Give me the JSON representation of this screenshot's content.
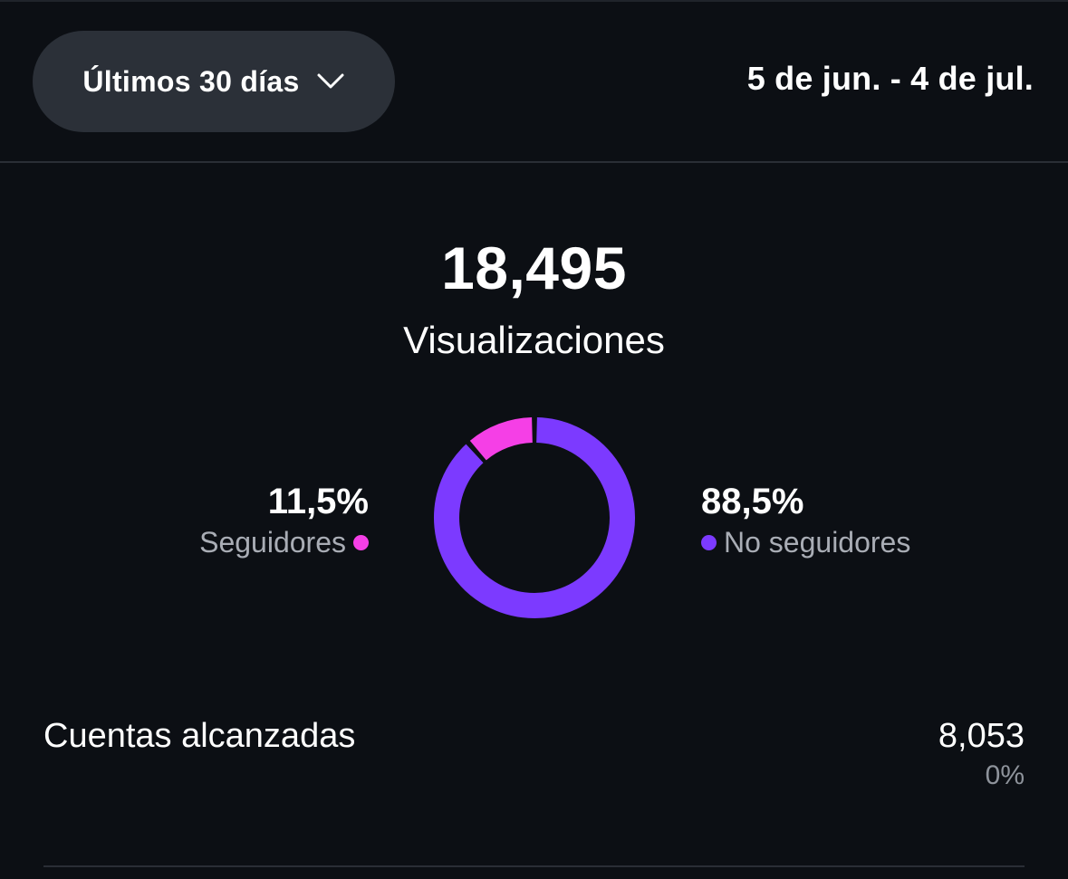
{
  "filter": {
    "range_label": "Últimos 30 días",
    "chevron_icon": "chevron-down-icon",
    "date_range": "5 de jun. - 4 de jul."
  },
  "views": {
    "total": "18,495",
    "label": "Visualizaciones"
  },
  "breakdown": {
    "followers": {
      "percent_text": "11,5%",
      "label": "Seguidores",
      "color": "#f53fe6",
      "fraction": 0.115
    },
    "non_followers": {
      "percent_text": "88,5%",
      "label": "No seguidores",
      "color": "#7c3aff",
      "fraction": 0.885
    }
  },
  "reach": {
    "label": "Cuentas alcanzadas",
    "value": "8,053",
    "change": "0%"
  },
  "colors": {
    "background": "#0c0f14",
    "button_bg": "#2b3038",
    "divider": "#2a2e35"
  }
}
